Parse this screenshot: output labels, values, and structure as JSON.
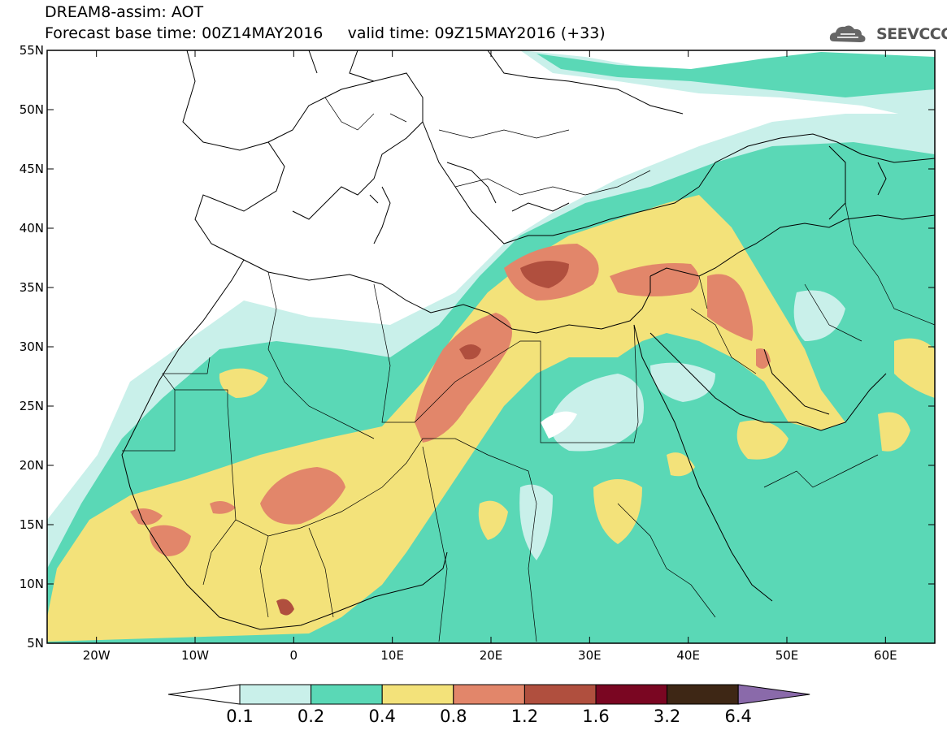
{
  "title": {
    "line1": "DREAM8-assim: AOT",
    "base_time_label": "Forecast base time: 00Z14MAY2016",
    "valid_time_label": "valid time: 09Z15MAY2016 (+33)"
  },
  "logo": {
    "text": "SEEVCCC",
    "icon": "cloud-icon"
  },
  "map": {
    "lon_range": [
      -25,
      65
    ],
    "lat_range": [
      5,
      55
    ],
    "lat_ticks": [
      {
        "value": 55,
        "label": "55N"
      },
      {
        "value": 50,
        "label": "50N"
      },
      {
        "value": 45,
        "label": "45N"
      },
      {
        "value": 40,
        "label": "40N"
      },
      {
        "value": 35,
        "label": "35N"
      },
      {
        "value": 30,
        "label": "30N"
      },
      {
        "value": 25,
        "label": "25N"
      },
      {
        "value": 20,
        "label": "20N"
      },
      {
        "value": 15,
        "label": "15N"
      },
      {
        "value": 10,
        "label": "10N"
      },
      {
        "value": 5,
        "label": "5N"
      }
    ],
    "lon_ticks": [
      {
        "value": -20,
        "label": "20W"
      },
      {
        "value": -10,
        "label": "10W"
      },
      {
        "value": 0,
        "label": "0"
      },
      {
        "value": 10,
        "label": "10E"
      },
      {
        "value": 20,
        "label": "20E"
      },
      {
        "value": 30,
        "label": "30E"
      },
      {
        "value": 40,
        "label": "40E"
      },
      {
        "value": 50,
        "label": "50E"
      },
      {
        "value": 60,
        "label": "60E"
      }
    ]
  },
  "colorbar": {
    "bins": [
      {
        "color": "#c9f0ea"
      },
      {
        "color": "#5ad8b6"
      },
      {
        "color": "#f3e27a"
      },
      {
        "color": "#e2866a"
      },
      {
        "color": "#b04f3e"
      },
      {
        "color": "#7a0622"
      },
      {
        "color": "#3e2715"
      }
    ],
    "under_color": "#ffffff",
    "over_color": "#8a6aaa",
    "labels": [
      "0.1",
      "0.2",
      "0.4",
      "0.8",
      "1.2",
      "1.6",
      "3.2",
      "6.4"
    ]
  }
}
